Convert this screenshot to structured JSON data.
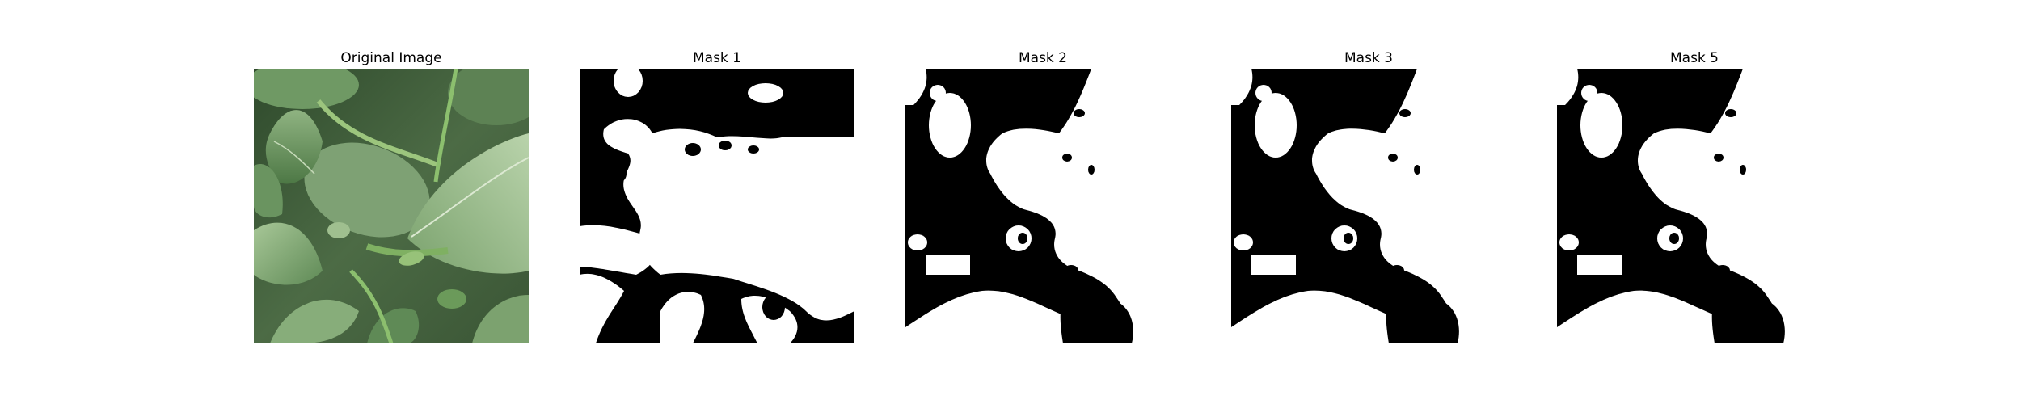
{
  "figure": {
    "panels": [
      {
        "id": "original",
        "title": "Original Image"
      },
      {
        "id": "mask1",
        "title": "Mask 1"
      },
      {
        "id": "mask2",
        "title": "Mask 2"
      },
      {
        "id": "mask3",
        "title": "Mask 3"
      },
      {
        "id": "mask5",
        "title": "Mask 5"
      }
    ]
  },
  "colors": {
    "mask_background": "#000000",
    "mask_foreground": "#ffffff",
    "leaf_dark": "#3f6a3a",
    "leaf_mid": "#6f9964",
    "leaf_light": "#a9c89a",
    "stem": "#8cbf6e"
  }
}
